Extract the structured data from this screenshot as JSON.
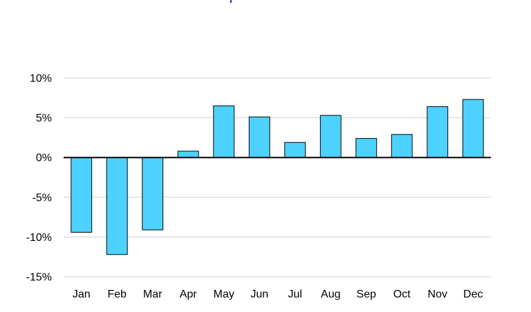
{
  "colors": {
    "bar_fill": "#4dd2ff",
    "bar_stroke": "#000000",
    "grid": "#d0d0d0",
    "zero_line": "#000000",
    "title_mark": "#2222cc"
  },
  "chart_data": {
    "type": "bar",
    "title": "",
    "xlabel": "",
    "ylabel": "",
    "categories": [
      "Jan",
      "Feb",
      "Mar",
      "Apr",
      "May",
      "Jun",
      "Jul",
      "Aug",
      "Sep",
      "Oct",
      "Nov",
      "Dec"
    ],
    "values": [
      -9.4,
      -12.2,
      -9.1,
      0.8,
      6.5,
      5.1,
      1.9,
      5.3,
      2.4,
      2.9,
      6.4,
      7.3
    ],
    "ylim": [
      -15,
      10
    ],
    "yticks": [
      10,
      5,
      0,
      -5,
      -10,
      -15
    ],
    "ytick_labels": [
      "10%",
      "5%",
      "0%",
      "-5%",
      "-10%",
      "-15%"
    ],
    "grid": true,
    "legend": "none"
  }
}
